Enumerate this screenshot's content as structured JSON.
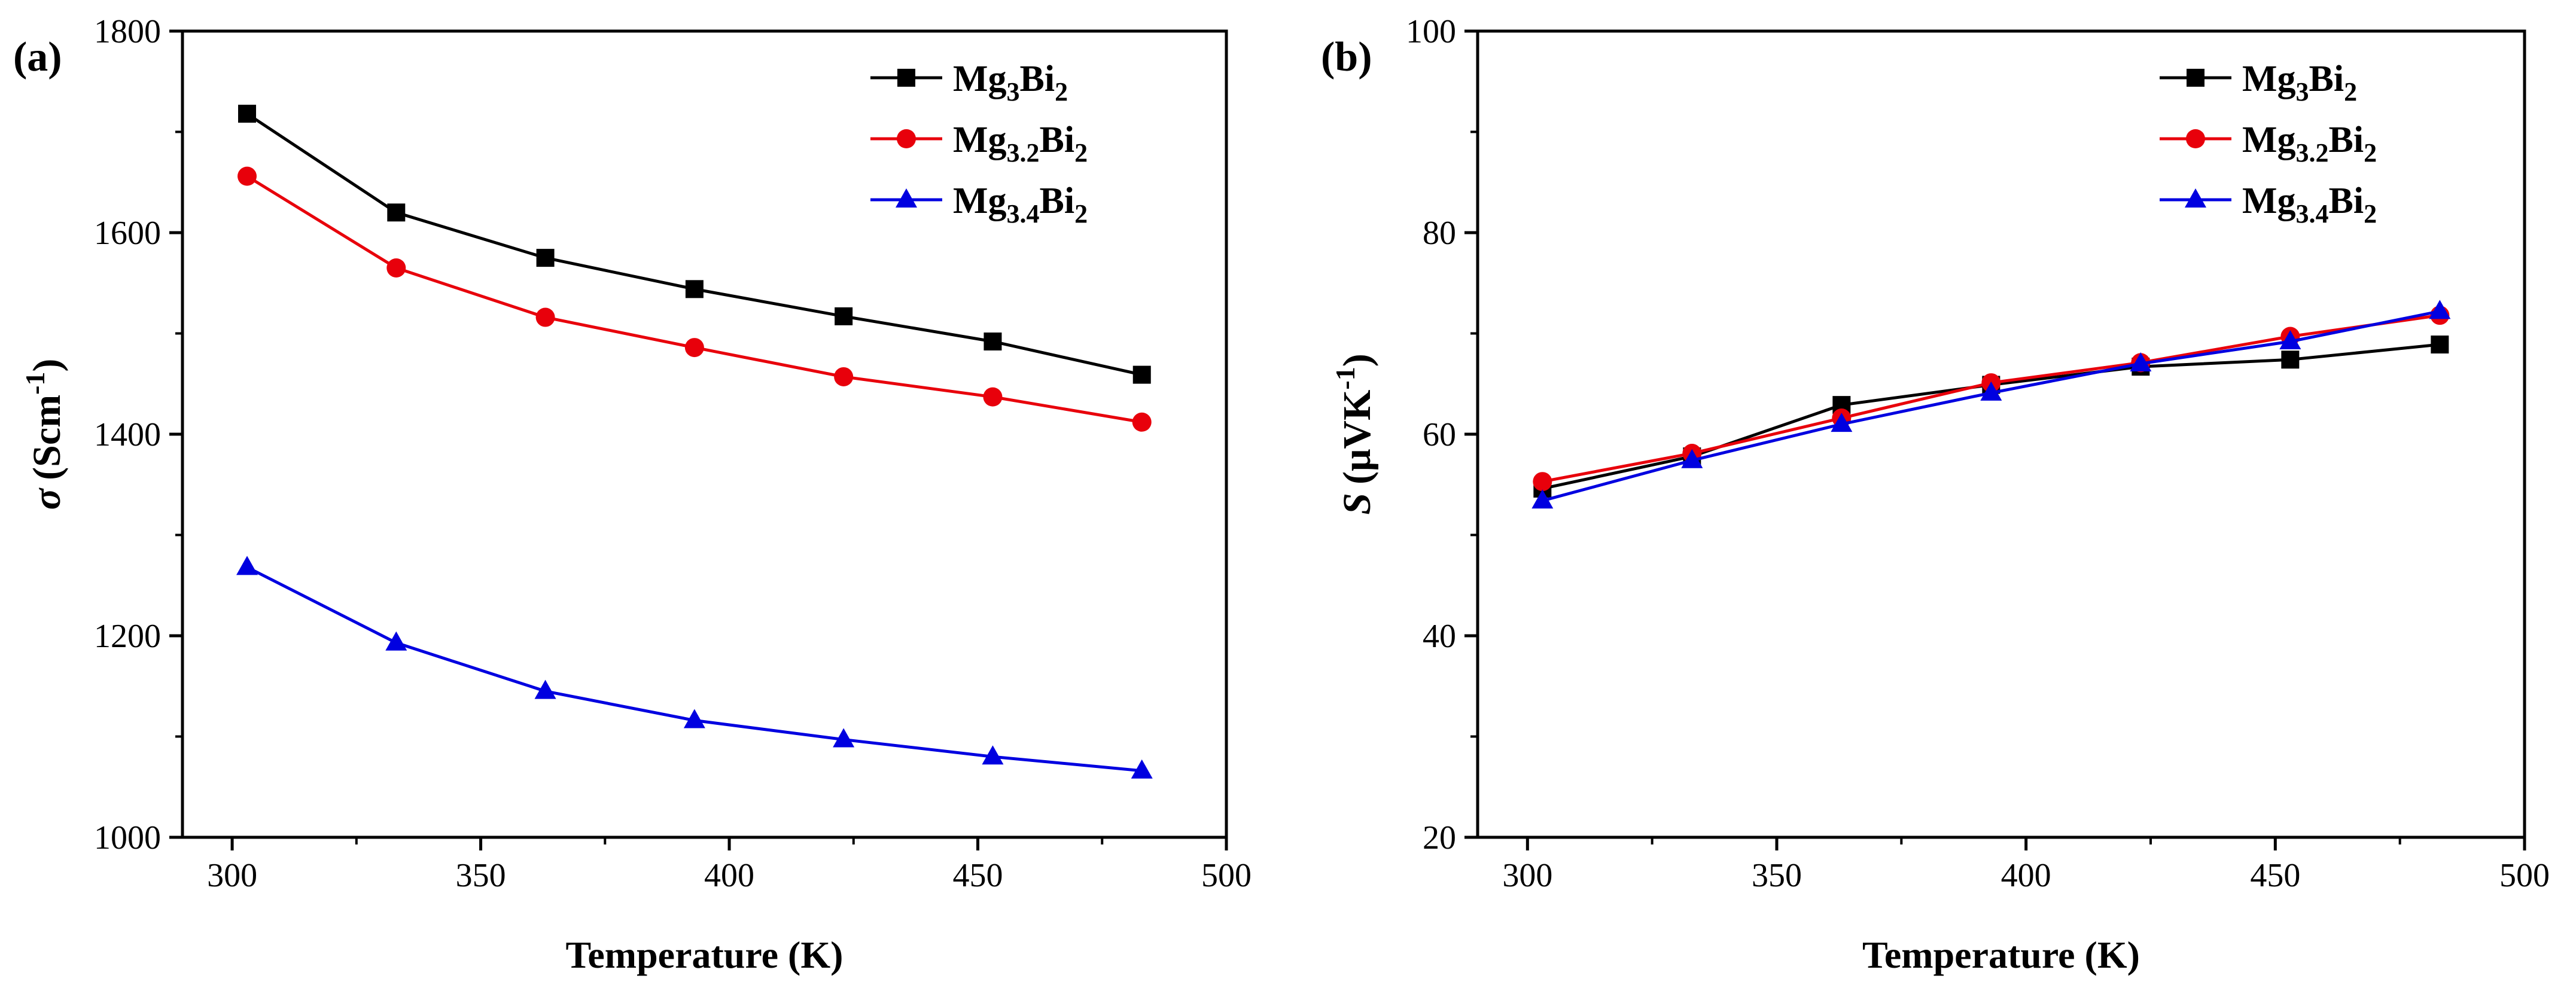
{
  "chart_data": [
    {
      "panel_label": "(a)",
      "type": "line",
      "xlabel": "Temperature (K)",
      "ylabel": {
        "symbol": "σ",
        "text": "(Scm",
        "sup": "-1",
        "close": ")"
      },
      "xlim": [
        290,
        500
      ],
      "ylim": [
        1000,
        1800
      ],
      "xticks": [
        "300",
        "350",
        "400",
        "450",
        "500"
      ],
      "yticks": [
        "1000",
        "1200",
        "1400",
        "1600",
        "1800"
      ],
      "x": [
        303,
        333,
        363,
        393,
        423,
        453,
        483
      ],
      "legend_placement": "top-right",
      "series": [
        {
          "name": {
            "base": "Mg",
            "sub1": "3",
            "mid": "Bi",
            "sub2": "2"
          },
          "color": "#000000",
          "marker": "square",
          "values": [
            1718,
            1620,
            1575,
            1544,
            1517,
            1492,
            1459
          ]
        },
        {
          "name": {
            "base": "Mg",
            "sub1": "3.2",
            "mid": "Bi",
            "sub2": "2"
          },
          "color": "#e8000b",
          "marker": "circle",
          "values": [
            1656,
            1565,
            1516,
            1486,
            1457,
            1437,
            1412
          ]
        },
        {
          "name": {
            "base": "Mg",
            "sub1": "3.4",
            "mid": "Bi",
            "sub2": "2"
          },
          "color": "#0000e0",
          "marker": "triangle",
          "values": [
            1268,
            1193,
            1145,
            1116,
            1097,
            1080,
            1066
          ]
        }
      ]
    },
    {
      "panel_label": "(b)",
      "type": "line",
      "xlabel": "Temperature (K)",
      "ylabel": {
        "symbol": "S",
        "text": "(μVK",
        "sup": "-1",
        "close": ")"
      },
      "xlim": [
        290,
        500
      ],
      "ylim": [
        20,
        100
      ],
      "xticks": [
        "300",
        "350",
        "400",
        "450",
        "500"
      ],
      "yticks": [
        "20",
        "40",
        "60",
        "80",
        "100"
      ],
      "x": [
        303,
        333,
        363,
        393,
        423,
        453,
        483
      ],
      "legend_placement": "top-right",
      "series": [
        {
          "name": {
            "base": "Mg",
            "sub1": "3",
            "mid": "Bi",
            "sub2": "2"
          },
          "color": "#000000",
          "marker": "square",
          "values": [
            54.6,
            57.8,
            62.9,
            64.9,
            66.7,
            67.4,
            68.9
          ]
        },
        {
          "name": {
            "base": "Mg",
            "sub1": "3.2",
            "mid": "Bi",
            "sub2": "2"
          },
          "color": "#e8000b",
          "marker": "circle",
          "values": [
            55.3,
            58.1,
            61.6,
            65.1,
            67.1,
            69.7,
            71.8
          ]
        },
        {
          "name": {
            "base": "Mg",
            "sub1": "3.4",
            "mid": "Bi",
            "sub2": "2"
          },
          "color": "#0000e0",
          "marker": "triangle",
          "values": [
            53.4,
            57.4,
            61.0,
            64.1,
            67.0,
            69.2,
            72.2
          ]
        }
      ]
    }
  ]
}
